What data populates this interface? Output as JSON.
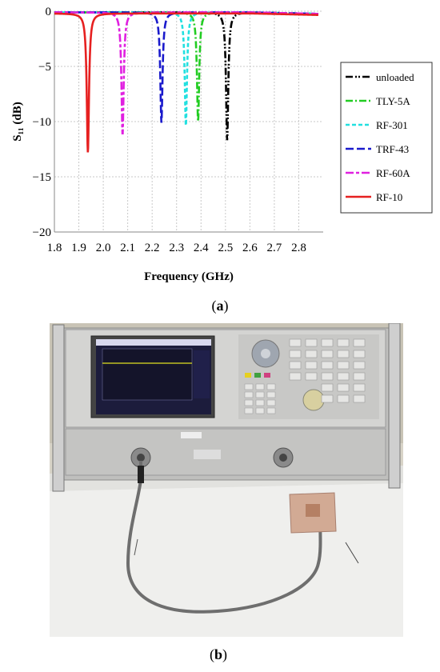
{
  "chart_data": {
    "type": "line",
    "title": "",
    "xlabel": "Frequency (GHz)",
    "ylabel": "S₁₁ (dB)",
    "xlim": [
      1.8,
      2.9
    ],
    "ylim": [
      -20,
      0
    ],
    "xticks": [
      "1.8",
      "1.9",
      "2.0",
      "2.1",
      "2.2",
      "2.3",
      "2.4",
      "2.5",
      "2.6",
      "2.7",
      "2.8"
    ],
    "yticks": [
      "0",
      "−5",
      "−10",
      "−15",
      "−20"
    ],
    "grid": true,
    "legend_position": "right",
    "series": [
      {
        "name": "unloaded",
        "color": "#000000",
        "dash": "dash-dot-dot",
        "resonance_ghz": 2.507,
        "min_db": -11.7,
        "baseline_db": -0.1
      },
      {
        "name": "TLY-5A",
        "color": "#22cc22",
        "dash": "dash-dot",
        "resonance_ghz": 2.388,
        "min_db": -10.0,
        "baseline_db": -0.1
      },
      {
        "name": "RF-301",
        "color": "#22e0e0",
        "dash": "short-dash",
        "resonance_ghz": 2.338,
        "min_db": -10.4,
        "baseline_db": -0.1
      },
      {
        "name": "TRF-43",
        "color": "#1a1acc",
        "dash": "long-dash",
        "resonance_ghz": 2.238,
        "min_db": -10.1,
        "baseline_db": -0.1
      },
      {
        "name": "RF-60A",
        "color": "#e020e0",
        "dash": "long-short-dash",
        "resonance_ghz": 2.079,
        "min_db": -11.2,
        "baseline_db": -0.1
      },
      {
        "name": "RF-10",
        "color": "#e62020",
        "dash": "solid",
        "resonance_ghz": 1.937,
        "min_db": -12.8,
        "baseline_db": -0.2
      }
    ]
  },
  "captions": {
    "a": "a",
    "b": "b"
  },
  "photo": {
    "description_icon": "vector-network-analyzer-photo"
  }
}
